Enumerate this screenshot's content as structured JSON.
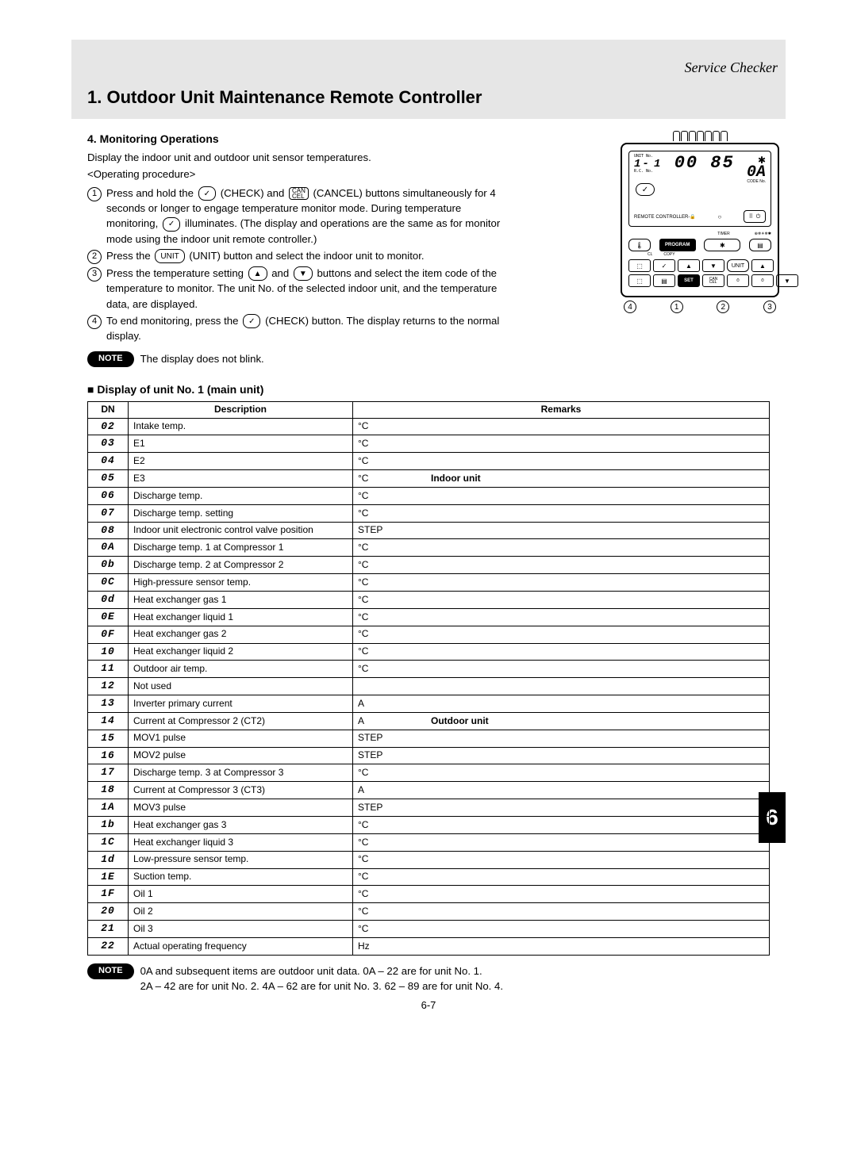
{
  "running_head": "Service Checker",
  "title": "1. Outdoor Unit Maintenance Remote Controller",
  "section_head": "4. Monitoring Operations",
  "intro_line1": "Display the indoor unit and outdoor unit sensor temperatures.",
  "intro_line2": "<Operating procedure>",
  "steps": [
    {
      "num": "1",
      "parts": [
        "Press and hold the ",
        {
          "key": "✓",
          "cls": "btn-key"
        },
        " (CHECK) and ",
        {
          "key": "CAN\nCEL",
          "cls": "btn-key sq small"
        },
        " (CANCEL) buttons simultaneously for 4 seconds or longer to engage temperature monitor mode.",
        " During temperature monitoring, ",
        {
          "key": "✓",
          "cls": "btn-key"
        },
        " illuminates.",
        " (The display and operations are the same as for monitor mode using the indoor unit remote controller.)"
      ]
    },
    {
      "num": "2",
      "parts": [
        "Press the ",
        {
          "key": "UNIT",
          "cls": "btn-key"
        },
        " (UNIT) button and select the indoor unit to monitor."
      ]
    },
    {
      "num": "3",
      "parts": [
        "Press the temperature setting ",
        {
          "key": "▲",
          "cls": "btn-key"
        },
        " and ",
        {
          "key": "▼",
          "cls": "btn-key"
        },
        " buttons and select the item code of the temperature to monitor.",
        " The unit No. of the selected indoor unit, and the temperature data, are displayed."
      ]
    },
    {
      "num": "4",
      "parts": [
        "To end monitoring, press the ",
        {
          "key": "✓",
          "cls": "btn-key"
        },
        " (CHECK) button.",
        " The display returns to the normal display."
      ]
    }
  ],
  "note1_label": "NOTE",
  "note1_text": "The display does not blink.",
  "table_title": "Display of unit No. 1 (main unit)",
  "table_headers": {
    "dn": "DN",
    "desc": "Description",
    "rem": "Remarks"
  },
  "rows": [
    {
      "dn": "02",
      "desc": "Intake temp.",
      "unit": "°C",
      "group": "indoor"
    },
    {
      "dn": "03",
      "desc": "E1",
      "unit": "°C",
      "group": "indoor"
    },
    {
      "dn": "04",
      "desc": "E2",
      "unit": "°C",
      "group": "indoor"
    },
    {
      "dn": "05",
      "desc": "E3",
      "unit": "°C",
      "group": "indoor",
      "rem": "Indoor unit"
    },
    {
      "dn": "06",
      "desc": "Discharge temp.",
      "unit": "°C",
      "group": "indoor"
    },
    {
      "dn": "07",
      "desc": "Discharge temp. setting",
      "unit": "°C",
      "group": "indoor"
    },
    {
      "dn": "08",
      "desc": "Indoor unit electronic control valve position",
      "unit": "STEP",
      "group": "indoor"
    },
    {
      "dn": "0A",
      "desc": "Discharge temp. 1 at Compressor 1",
      "unit": "°C",
      "group": "outdoor"
    },
    {
      "dn": "0b",
      "desc": "Discharge temp. 2 at Compressor 2",
      "unit": "°C",
      "group": "outdoor"
    },
    {
      "dn": "0C",
      "desc": "High-pressure sensor temp.",
      "unit": "°C",
      "group": "outdoor"
    },
    {
      "dn": "0d",
      "desc": "Heat exchanger gas 1",
      "unit": "°C",
      "group": "outdoor"
    },
    {
      "dn": "0E",
      "desc": "Heat exchanger liquid 1",
      "unit": "°C",
      "group": "outdoor"
    },
    {
      "dn": "0F",
      "desc": "Heat exchanger gas 2",
      "unit": "°C",
      "group": "outdoor"
    },
    {
      "dn": "10",
      "desc": "Heat exchanger liquid 2",
      "unit": "°C",
      "group": "outdoor"
    },
    {
      "dn": "11",
      "desc": "Outdoor air temp.",
      "unit": "°C",
      "group": "outdoor"
    },
    {
      "dn": "12",
      "desc": "Not used",
      "unit": "",
      "group": "outdoor"
    },
    {
      "dn": "13",
      "desc": "Inverter primary current",
      "unit": "A",
      "group": "outdoor"
    },
    {
      "dn": "14",
      "desc": "Current at Compressor 2 (CT2)",
      "unit": "A",
      "group": "outdoor",
      "rem": "Outdoor unit"
    },
    {
      "dn": "15",
      "desc": "MOV1 pulse",
      "unit": "STEP",
      "group": "outdoor"
    },
    {
      "dn": "16",
      "desc": "MOV2 pulse",
      "unit": "STEP",
      "group": "outdoor"
    },
    {
      "dn": "17",
      "desc": "Discharge temp. 3 at Compressor 3",
      "unit": "°C",
      "group": "outdoor"
    },
    {
      "dn": "18",
      "desc": "Current at Compressor 3 (CT3)",
      "unit": "A",
      "group": "outdoor"
    },
    {
      "dn": "1A",
      "desc": "MOV3 pulse",
      "unit": "STEP",
      "group": "outdoor"
    },
    {
      "dn": "1b",
      "desc": "Heat exchanger gas 3",
      "unit": "°C",
      "group": "outdoor"
    },
    {
      "dn": "1C",
      "desc": "Heat exchanger liquid 3",
      "unit": "°C",
      "group": "outdoor"
    },
    {
      "dn": "1d",
      "desc": "Low-pressure sensor temp.",
      "unit": "°C",
      "group": "outdoor"
    },
    {
      "dn": "1E",
      "desc": "Suction temp.",
      "unit": "°C",
      "group": "outdoor"
    },
    {
      "dn": "1F",
      "desc": "Oil 1",
      "unit": "°C",
      "group": "outdoor"
    },
    {
      "dn": "20",
      "desc": "Oil 2",
      "unit": "°C",
      "group": "outdoor"
    },
    {
      "dn": "21",
      "desc": "Oil 3",
      "unit": "°C",
      "group": "outdoor"
    },
    {
      "dn": "22",
      "desc": "Actual operating frequency",
      "unit": "Hz",
      "group": "outdoor"
    }
  ],
  "note2_label": "NOTE",
  "note2_line1": "0A and subsequent items are outdoor unit data. 0A – 22 are for unit No. 1.",
  "note2_line2": "2A – 42 are for unit No. 2. 4A – 62 are for unit No. 3. 62 – 89 are for unit No. 4.",
  "page_num": "6-7",
  "side_tab": "6",
  "remote": {
    "unit_label": "UNIT\nNo.",
    "rc_label": "R.C.  No.",
    "unit_num_left": "1-",
    "unit_num_right": "1",
    "seg_main": "00 85",
    "seg_right_top": "0A",
    "seg_right_label": "CODE No.",
    "rc_text": "REMOTE CONTROLLER-",
    "lock_icon": "🔒",
    "timer_label": "TIMER",
    "program_label": "PROGRAM",
    "copy_label": "COPY",
    "unit_btn": "UNIT",
    "set_btn": "SET",
    "cancel_btn": "CAN\nCEL",
    "timer_set_btn": "TIMER SET",
    "timer_off_btn": "TIMER OFF",
    "icons_row": "⊕❄☀❄✱",
    "callouts": [
      "4",
      "1",
      "2",
      "3"
    ]
  }
}
